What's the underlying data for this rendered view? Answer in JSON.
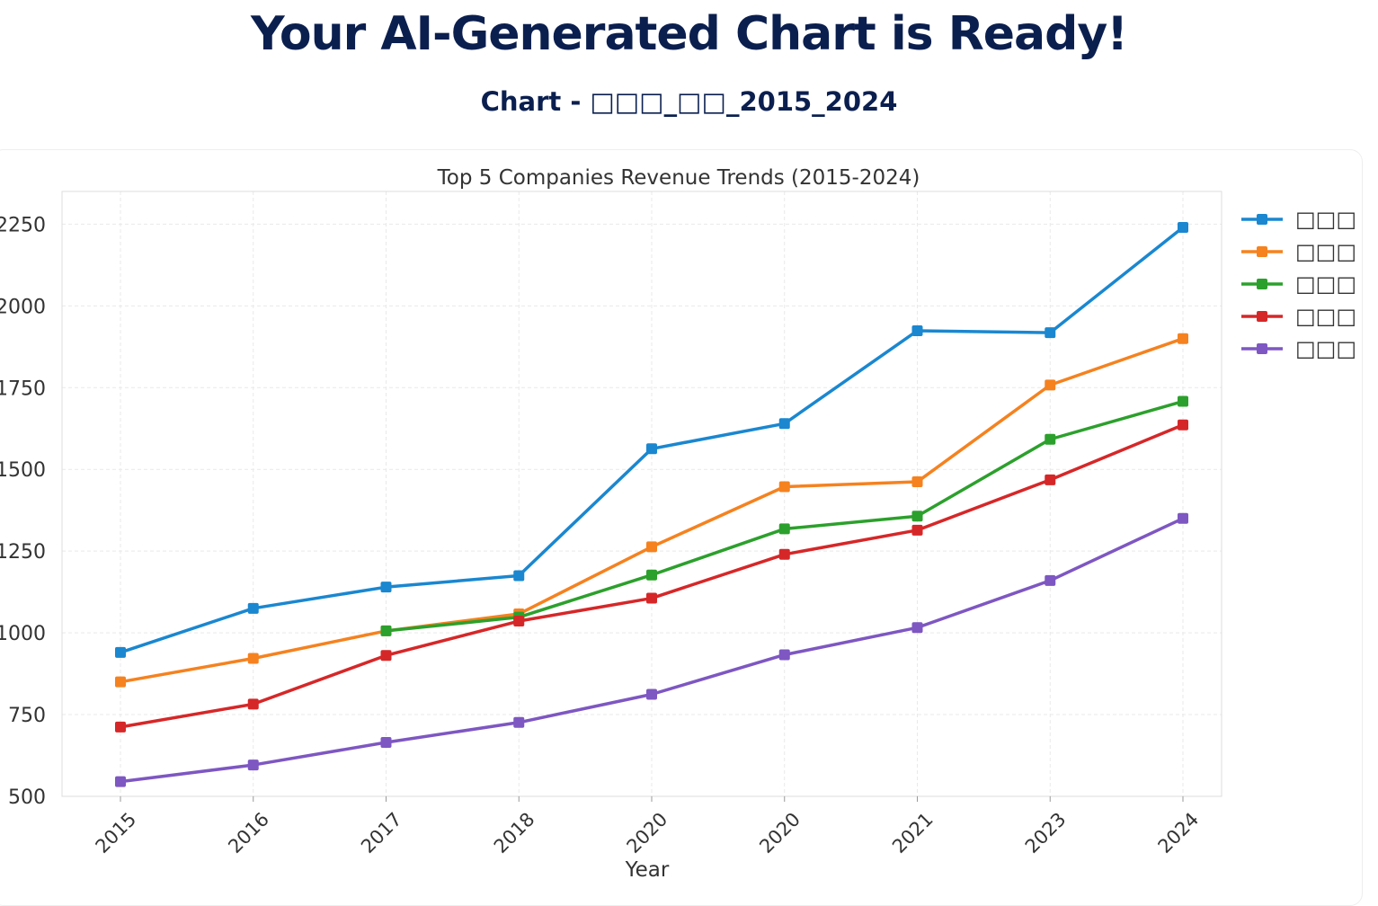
{
  "page": {
    "title": "Your AI-Generated Chart is Ready!",
    "subtitle": "Chart - □□□_□□_2015_2024"
  },
  "chart_data": {
    "type": "line",
    "title": "Top 5 Companies Revenue Trends (2015-2024)",
    "xlabel": "Year",
    "ylabel": "",
    "categories": [
      "2015",
      "2016",
      "2017",
      "2018",
      "2020",
      "2020",
      "2021",
      "2023",
      "2024"
    ],
    "ylim": [
      500,
      2350
    ],
    "yticks": [
      500,
      750,
      1000,
      1250,
      1500,
      1750,
      2000,
      2250
    ],
    "grid": true,
    "legend": "right",
    "series": [
      {
        "name": "□□□",
        "color": "#1a87d0",
        "values": [
          940,
          1075,
          1140,
          1175,
          1563,
          1640,
          1924,
          1918,
          2240
        ]
      },
      {
        "name": "□□□",
        "color": "#f5821f",
        "values": [
          850,
          922,
          1006,
          1058,
          1263,
          1447,
          1462,
          1758,
          1900
        ]
      },
      {
        "name": "□□□",
        "color": "#2ca02c",
        "values": [
          null,
          null,
          1006,
          1048,
          1177,
          1318,
          1357,
          1592,
          1708
        ]
      },
      {
        "name": "□□□",
        "color": "#d62728",
        "values": [
          712,
          782,
          931,
          1036,
          1106,
          1240,
          1314,
          1468,
          1636
        ]
      },
      {
        "name": "□□□",
        "color": "#7e57c2",
        "values": [
          545,
          596,
          665,
          726,
          812,
          933,
          1016,
          1160,
          1350
        ]
      }
    ]
  }
}
